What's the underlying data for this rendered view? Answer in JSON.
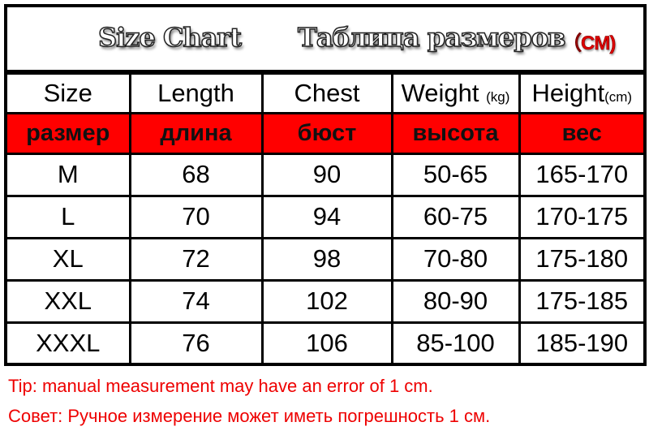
{
  "title": {
    "en": "Size Chart",
    "ru": "Таблица размеров",
    "unit": "（CM)"
  },
  "headers": [
    {
      "label": "Size",
      "unit": ""
    },
    {
      "label": "Length",
      "unit": ""
    },
    {
      "label": "Chest",
      "unit": ""
    },
    {
      "label": "Weight",
      "unit": "(kg)"
    },
    {
      "label": "Height",
      "unit": "(cm)"
    }
  ],
  "headers_ru": [
    "размер",
    "длина",
    "бюст",
    "высота",
    "вес"
  ],
  "rows": [
    [
      "M",
      "68",
      "90",
      "50-65",
      "165-170"
    ],
    [
      "L",
      "70",
      "94",
      "60-75",
      "170-175"
    ],
    [
      "XL",
      "72",
      "98",
      "70-80",
      "175-180"
    ],
    [
      "XXL",
      "74",
      "102",
      "80-90",
      "175-185"
    ],
    [
      "XXXL",
      "76",
      "106",
      "85-100",
      "185-190"
    ]
  ],
  "notes": {
    "en": "Tip: manual measurement may have an error of 1 cm.",
    "ru": "Совет: Ручное измерение может иметь погрешность 1 см."
  },
  "colors": {
    "header_ru_bg": "#ff0000",
    "note_text": "#e00000",
    "unit_text": "#dd0000"
  }
}
